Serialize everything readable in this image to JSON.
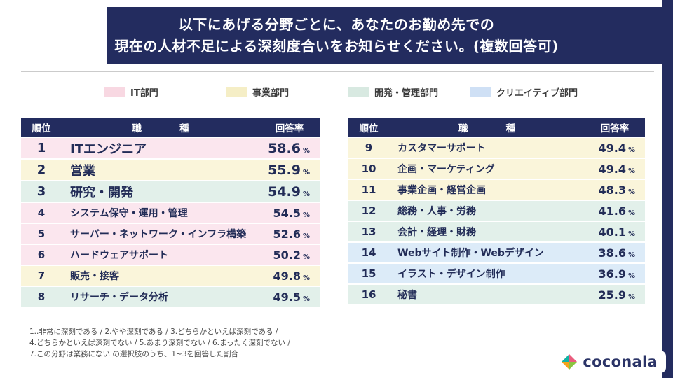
{
  "header": {
    "title_line1": "以下にあげる分野ごとに、あなたのお勤め先での",
    "title_line2": "現在の人材不足による深刻度合いをお知らせください。(複数回答可)"
  },
  "colors": {
    "navy": "#232c5f",
    "pink": "#f8d8e2",
    "pink_row": "#fbe6ee",
    "yellow": "#f5eec6",
    "yellow_row": "#faf5da",
    "green": "#d8e9e1",
    "green_row": "#e2f0ea",
    "blue": "#cfe0f5",
    "blue_row": "#dcebf8"
  },
  "legend": [
    {
      "label": "IT部門",
      "color_key": "pink"
    },
    {
      "label": "事業部門",
      "color_key": "yellow"
    },
    {
      "label": "開発・管理部門",
      "color_key": "green"
    },
    {
      "label": "クリエイティブ部門",
      "color_key": "blue"
    }
  ],
  "tables": {
    "columns": {
      "rank": "順位",
      "job": "職　　　　種",
      "rate": "回答率"
    },
    "percent_sign": "%"
  },
  "chart_data": {
    "type": "table",
    "title": "以下にあげる分野ごとに、あなたのお勤め先での現在の人材不足による深刻度合いをお知らせください。(複数回答可)",
    "legend": [
      "IT部門",
      "事業部門",
      "開発・管理部門",
      "クリエイティブ部門"
    ],
    "columns": [
      "順位",
      "職種",
      "回答率(%)"
    ],
    "rows": [
      {
        "rank": 1,
        "job": "ITエンジニア",
        "rate_pct": 58.6,
        "department": "IT部門"
      },
      {
        "rank": 2,
        "job": "営業",
        "rate_pct": 55.9,
        "department": "事業部門"
      },
      {
        "rank": 3,
        "job": "研究・開発",
        "rate_pct": 54.9,
        "department": "開発・管理部門"
      },
      {
        "rank": 4,
        "job": "システム保守・運用・管理",
        "rate_pct": 54.5,
        "department": "IT部門"
      },
      {
        "rank": 5,
        "job": "サーバー・ネットワーク・インフラ構築",
        "rate_pct": 52.6,
        "department": "IT部門"
      },
      {
        "rank": 6,
        "job": "ハードウェアサポート",
        "rate_pct": 50.2,
        "department": "IT部門"
      },
      {
        "rank": 7,
        "job": "販売・接客",
        "rate_pct": 49.8,
        "department": "事業部門"
      },
      {
        "rank": 8,
        "job": "リサーチ・データ分析",
        "rate_pct": 49.5,
        "department": "開発・管理部門"
      },
      {
        "rank": 9,
        "job": "カスタマーサポート",
        "rate_pct": 49.4,
        "department": "事業部門"
      },
      {
        "rank": 10,
        "job": "企画・マーケティング",
        "rate_pct": 49.4,
        "department": "事業部門"
      },
      {
        "rank": 11,
        "job": "事業企画・経営企画",
        "rate_pct": 48.3,
        "department": "事業部門"
      },
      {
        "rank": 12,
        "job": "総務・人事・労務",
        "rate_pct": 41.6,
        "department": "開発・管理部門"
      },
      {
        "rank": 13,
        "job": "会計・経理・財務",
        "rate_pct": 40.1,
        "department": "開発・管理部門"
      },
      {
        "rank": 14,
        "job": "Webサイト制作・Webデザイン",
        "rate_pct": 38.6,
        "department": "クリエイティブ部門"
      },
      {
        "rank": 15,
        "job": "イラスト・デザイン制作",
        "rate_pct": 36.9,
        "department": "クリエイティブ部門"
      },
      {
        "rank": 16,
        "job": "秘書",
        "rate_pct": 25.9,
        "department": "開発・管理部門"
      }
    ],
    "footnote": "1..非常に深刻である / 2.やや深刻である / 3.どちらかといえば深刻である / 4.どちらかといえば深刻でない / 5.あまり深刻でない / 6.まったく深刻でない / 7.この分野は業務にない の選択肢のうち、1~3を回答した割合"
  },
  "footnote": {
    "line1": "1..非常に深刻である / 2.やや深刻である / 3.どちらかといえば深刻である /",
    "line2": "4.どちらかといえば深刻でない / 5.あまり深刻でない / 6.まったく深刻でない /",
    "line3": "7.この分野は業務にない の選択肢のうち、1~3を回答した割合"
  },
  "logo": {
    "text": "coconala"
  }
}
